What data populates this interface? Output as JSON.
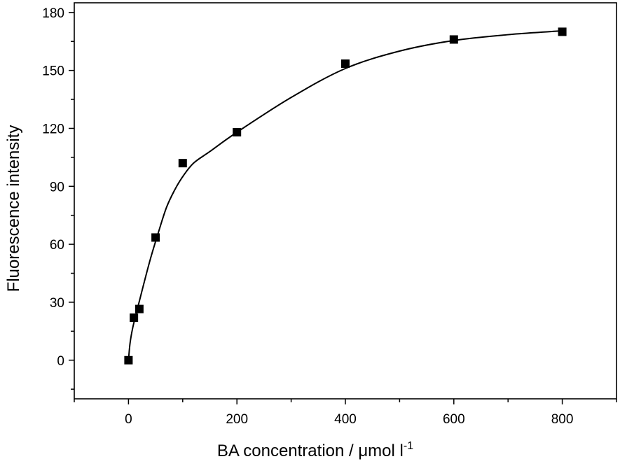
{
  "chart_data": {
    "type": "scatter",
    "title": "",
    "xlabel": "BA concentration / μmol l",
    "xlabel_superscript": "-1",
    "ylabel": "Fluorescence intensity",
    "xlim": [
      -100,
      900
    ],
    "ylim": [
      -20,
      185
    ],
    "xticks": [
      0,
      200,
      400,
      600,
      800
    ],
    "yticks": [
      0,
      30,
      60,
      90,
      120,
      150,
      180
    ],
    "x_minor_step": 100,
    "y_minor_step": 15,
    "grid": false,
    "legend": "none",
    "marker": "square",
    "colors": {
      "marker": "#000000",
      "line": "#000000",
      "axis": "#000000"
    },
    "series": [
      {
        "x": [
          0,
          10,
          20,
          50,
          100,
          200,
          400,
          600,
          800
        ],
        "y": [
          0,
          22,
          26.5,
          63.5,
          102,
          118,
          153.5,
          166,
          170
        ]
      }
    ],
    "fit_curve": {
      "style": "smooth",
      "x": [
        0,
        3,
        8,
        15,
        25,
        40,
        55,
        70,
        85,
        100,
        120,
        150,
        200,
        300,
        400,
        500,
        600,
        700,
        800
      ],
      "y": [
        0,
        9,
        17,
        25,
        36,
        52,
        66,
        79,
        88,
        95,
        102,
        108,
        118,
        136,
        151,
        160,
        165.5,
        168.5,
        170.5
      ]
    }
  }
}
